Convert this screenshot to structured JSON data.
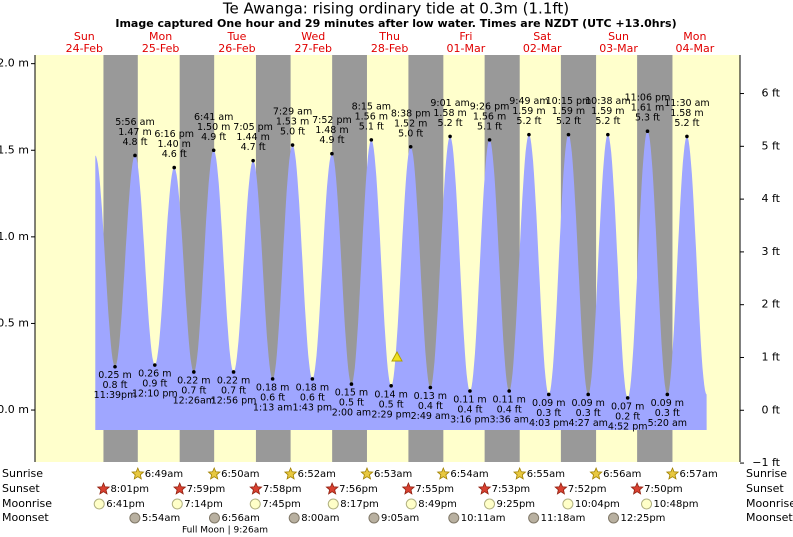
{
  "header": {
    "title": "Te Awanga: rising  ordinary tide at 0.3m (1.1ft)",
    "subtitle": "Image captured One hour and 29 minutes after low water. Times are NZDT (UTC +13.0hrs)"
  },
  "axes": {
    "ylim": [
      -0.3,
      2.05
    ],
    "yticks": [
      {
        "value": 0,
        "label": "0.0 m"
      },
      {
        "value": 0.5,
        "label": "0.5 m"
      },
      {
        "value": 1,
        "label": "1.0 m"
      },
      {
        "value": 1.5,
        "label": "1.5 m"
      },
      {
        "value": 2,
        "label": "2.0 m"
      }
    ],
    "y2lim": [
      -0.98,
      6.73
    ],
    "y2ticks": [
      {
        "value": -1,
        "label": "−1 ft"
      },
      {
        "value": 0,
        "label": "0 ft"
      },
      {
        "value": 1,
        "label": "1 ft"
      },
      {
        "value": 2,
        "label": "2 ft"
      },
      {
        "value": 3,
        "label": "3 ft"
      },
      {
        "value": 4,
        "label": "4 ft"
      },
      {
        "value": 5,
        "label": "5 ft"
      },
      {
        "value": 6,
        "label": "6 ft"
      }
    ]
  },
  "days": [
    {
      "weekday": "Sun",
      "date": "24-Feb",
      "sunrise": null,
      "sunset": "8:01pm",
      "moonrise": "6:41pm",
      "moonset": null
    },
    {
      "weekday": "Mon",
      "date": "25-Feb",
      "sunrise": "6:49am",
      "sunset": "7:59pm",
      "moonrise": "7:14pm",
      "moonset": "5:54am"
    },
    {
      "weekday": "Tue",
      "date": "26-Feb",
      "sunrise": "6:50am",
      "sunset": "7:58pm",
      "moonrise": "7:45pm",
      "moonset": "6:56am"
    },
    {
      "weekday": "Wed",
      "date": "27-Feb",
      "sunrise": "6:52am",
      "sunset": "7:56pm",
      "moonrise": "8:17pm",
      "moonset": "8:00am"
    },
    {
      "weekday": "Thu",
      "date": "28-Feb",
      "sunrise": "6:53am",
      "sunset": "7:55pm",
      "moonrise": "8:49pm",
      "moonset": "9:05am"
    },
    {
      "weekday": "Fri",
      "date": "01-Mar",
      "sunrise": "6:54am",
      "sunset": "7:53pm",
      "moonrise": "9:25pm",
      "moonset": "10:11am"
    },
    {
      "weekday": "Sat",
      "date": "02-Mar",
      "sunrise": "6:55am",
      "sunset": "7:52pm",
      "moonrise": "10:04pm",
      "moonset": "11:18am"
    },
    {
      "weekday": "Sun",
      "date": "03-Mar",
      "sunrise": "6:56am",
      "sunset": "7:50pm",
      "moonrise": "10:48pm",
      "moonset": "12:25pm"
    },
    {
      "weekday": "Mon",
      "date": "04-Mar",
      "sunrise": "6:57am",
      "sunset": null,
      "moonrise": null,
      "moonset": null
    }
  ],
  "tides": [
    {
      "time": "11:39pm",
      "height": 0.25,
      "height_label": "0.25 m",
      "feet_label": "0.8 ft"
    },
    {
      "time": "5:56 am",
      "height": 1.47,
      "height_label": "1.47 m",
      "feet_label": "4.8 ft"
    },
    {
      "time": "12:10 pm",
      "height": 0.26,
      "height_label": "0.26 m",
      "feet_label": "0.9 ft"
    },
    {
      "time": "6:16 pm",
      "height": 1.4,
      "height_label": "1.40 m",
      "feet_label": "4.6 ft"
    },
    {
      "time": "12:26am",
      "height": 0.22,
      "height_label": "0.22 m",
      "feet_label": "0.7 ft"
    },
    {
      "time": "6:41 am",
      "height": 1.5,
      "height_label": "1.50 m",
      "feet_label": "4.9 ft"
    },
    {
      "time": "12:56 pm",
      "height": 0.22,
      "height_label": "0.22 m",
      "feet_label": "0.7 ft"
    },
    {
      "time": "7:05 pm",
      "height": 1.44,
      "height_label": "1.44 m",
      "feet_label": "4.7 ft"
    },
    {
      "time": "1:13 am",
      "height": 0.18,
      "height_label": "0.18 m",
      "feet_label": "0.6 ft"
    },
    {
      "time": "7:29 am",
      "height": 1.53,
      "height_label": "1.53 m",
      "feet_label": "5.0 ft"
    },
    {
      "time": "1:43 pm",
      "height": 0.18,
      "height_label": "0.18 m",
      "feet_label": "0.6 ft"
    },
    {
      "time": "7:52 pm",
      "height": 1.48,
      "height_label": "1.48 m",
      "feet_label": "4.9 ft"
    },
    {
      "time": "2:00 am",
      "height": 0.15,
      "height_label": "0.15 m",
      "feet_label": "0.5 ft"
    },
    {
      "time": "8:15 am",
      "height": 1.56,
      "height_label": "1.56 m",
      "feet_label": "5.1 ft"
    },
    {
      "time": "2:29 pm",
      "height": 0.14,
      "height_label": "0.14 m",
      "feet_label": "0.5 ft"
    },
    {
      "time": "8:38 pm",
      "height": 1.52,
      "height_label": "1.52 m",
      "feet_label": "5.0 ft"
    },
    {
      "time": "2:49 am",
      "height": 0.13,
      "height_label": "0.13 m",
      "feet_label": "0.4 ft"
    },
    {
      "time": "9:01 am",
      "height": 1.58,
      "height_label": "1.58 m",
      "feet_label": "5.2 ft"
    },
    {
      "time": "3:16 pm",
      "height": 0.11,
      "height_label": "0.11 m",
      "feet_label": "0.4 ft"
    },
    {
      "time": "9:26 pm",
      "height": 1.56,
      "height_label": "1.56 m",
      "feet_label": "5.1 ft"
    },
    {
      "time": "3:36 am",
      "height": 0.11,
      "height_label": "0.11 m",
      "feet_label": "0.4 ft"
    },
    {
      "time": "9:49 am",
      "height": 1.59,
      "height_label": "1.59 m",
      "feet_label": "5.2 ft"
    },
    {
      "time": "4:03 pm",
      "height": 0.09,
      "height_label": "0.09 m",
      "feet_label": "0.3 ft"
    },
    {
      "time": "10:15 pm",
      "height": 1.59,
      "height_label": "1.59 m",
      "feet_label": "5.2 ft"
    },
    {
      "time": "4:27 am",
      "height": 0.09,
      "height_label": "0.09 m",
      "feet_label": "0.3 ft"
    },
    {
      "time": "10:38 am",
      "height": 1.59,
      "height_label": "1.59 m",
      "feet_label": "5.2 ft"
    },
    {
      "time": "4:52 pm",
      "height": 0.07,
      "height_label": "0.07 m",
      "feet_label": "0.2 ft"
    },
    {
      "time": "11:06 pm",
      "height": 1.61,
      "height_label": "1.61 m",
      "feet_label": "5.3 ft"
    },
    {
      "time": "5:20 am",
      "height": 0.09,
      "height_label": "0.09 m",
      "feet_label": "0.3 ft"
    },
    {
      "time": "11:30 am",
      "height": 1.58,
      "height_label": "1.58 m",
      "feet_label": "5.2 ft"
    }
  ],
  "row_labels": [
    "Sunrise",
    "Sunset",
    "Moonrise",
    "Moonset"
  ],
  "full_moon": "Full Moon | 9:26am"
}
